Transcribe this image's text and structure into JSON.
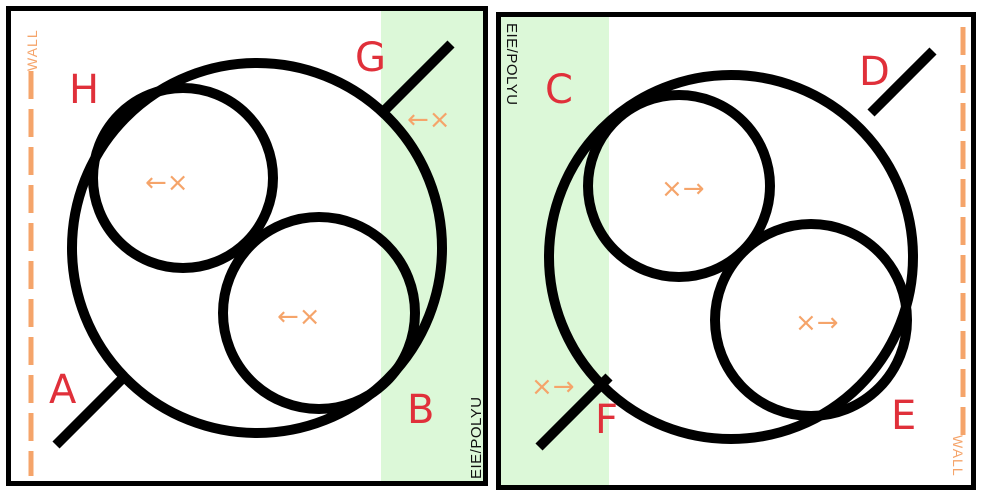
{
  "left_panel": {
    "wall_label": "WALL",
    "watermark": "EIE/POLYU",
    "letters": {
      "top_left": "H",
      "top_right": "G",
      "bottom_left": "A",
      "bottom_right": "B"
    },
    "markers": {
      "upper_circle": "←×",
      "lower_circle": "←×",
      "rim": "←×"
    }
  },
  "right_panel": {
    "wall_label": "WALL",
    "watermark": "EIE/POLYU",
    "letters": {
      "top_left": "C",
      "top_right": "D",
      "bottom_left": "F",
      "bottom_right": "E"
    },
    "markers": {
      "upper_circle": "×→",
      "lower_circle": "×→",
      "rim": "×→"
    }
  },
  "colors": {
    "green_band": "#dcf8d8",
    "wall_dash": "#f5a46a",
    "letter_red": "#e0303a"
  }
}
